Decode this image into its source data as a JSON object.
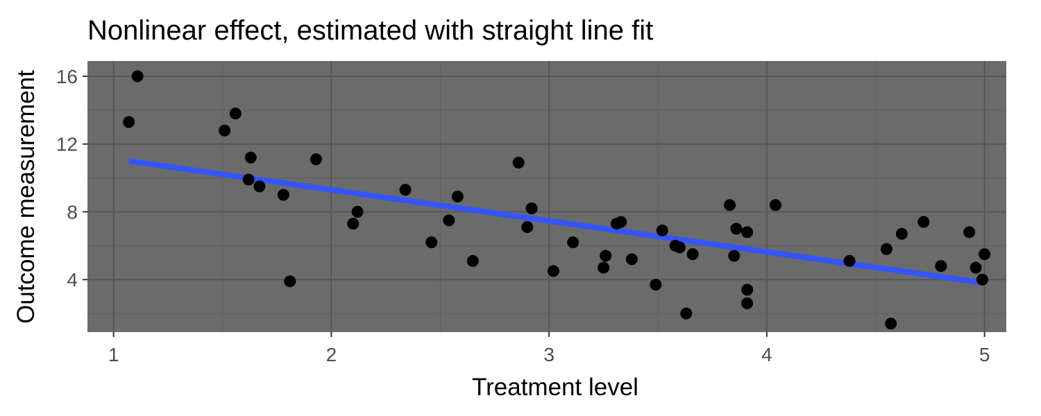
{
  "chart_data": {
    "type": "scatter",
    "title": "Nonlinear effect, estimated with straight line fit",
    "xlabel": "Treatment level",
    "ylabel": "Outcome measurement",
    "xlim": [
      0.88,
      5.1
    ],
    "ylim": [
      0.9,
      16.9
    ],
    "x_ticks": [
      "1",
      "2",
      "3",
      "4",
      "5"
    ],
    "y_ticks": [
      "4",
      "8",
      "12",
      "16"
    ],
    "grid": true,
    "panel_background": "#6b6b6b",
    "point_color": "#000000",
    "fit_line_color": "#3355ff",
    "points": [
      {
        "x": 1.07,
        "y": 13.3
      },
      {
        "x": 1.11,
        "y": 16.0
      },
      {
        "x": 1.51,
        "y": 12.8
      },
      {
        "x": 1.56,
        "y": 13.8
      },
      {
        "x": 1.62,
        "y": 9.9
      },
      {
        "x": 1.63,
        "y": 11.2
      },
      {
        "x": 1.67,
        "y": 9.5
      },
      {
        "x": 1.78,
        "y": 9.0
      },
      {
        "x": 1.81,
        "y": 3.9
      },
      {
        "x": 1.93,
        "y": 11.1
      },
      {
        "x": 2.1,
        "y": 7.3
      },
      {
        "x": 2.12,
        "y": 8.0
      },
      {
        "x": 2.34,
        "y": 9.3
      },
      {
        "x": 2.46,
        "y": 6.2
      },
      {
        "x": 2.54,
        "y": 7.5
      },
      {
        "x": 2.58,
        "y": 8.9
      },
      {
        "x": 2.65,
        "y": 5.1
      },
      {
        "x": 2.86,
        "y": 10.9
      },
      {
        "x": 2.9,
        "y": 7.1
      },
      {
        "x": 2.92,
        "y": 8.2
      },
      {
        "x": 3.02,
        "y": 4.5
      },
      {
        "x": 3.11,
        "y": 6.2
      },
      {
        "x": 3.25,
        "y": 4.7
      },
      {
        "x": 3.26,
        "y": 5.4
      },
      {
        "x": 3.31,
        "y": 7.3
      },
      {
        "x": 3.33,
        "y": 7.4
      },
      {
        "x": 3.38,
        "y": 5.2
      },
      {
        "x": 3.49,
        "y": 3.7
      },
      {
        "x": 3.52,
        "y": 6.9
      },
      {
        "x": 3.58,
        "y": 6.0
      },
      {
        "x": 3.6,
        "y": 5.9
      },
      {
        "x": 3.63,
        "y": 2.0
      },
      {
        "x": 3.66,
        "y": 5.5
      },
      {
        "x": 3.83,
        "y": 8.4
      },
      {
        "x": 3.85,
        "y": 5.4
      },
      {
        "x": 3.86,
        "y": 7.0
      },
      {
        "x": 3.91,
        "y": 6.8
      },
      {
        "x": 3.91,
        "y": 3.4
      },
      {
        "x": 3.91,
        "y": 2.6
      },
      {
        "x": 4.04,
        "y": 8.4
      },
      {
        "x": 4.38,
        "y": 5.1
      },
      {
        "x": 4.55,
        "y": 5.8
      },
      {
        "x": 4.57,
        "y": 1.4
      },
      {
        "x": 4.62,
        "y": 6.7
      },
      {
        "x": 4.72,
        "y": 7.4
      },
      {
        "x": 4.8,
        "y": 4.8
      },
      {
        "x": 4.93,
        "y": 6.8
      },
      {
        "x": 4.96,
        "y": 4.7
      },
      {
        "x": 4.99,
        "y": 4.0
      },
      {
        "x": 5.0,
        "y": 5.5
      }
    ],
    "fit_line": {
      "x": [
        1.07,
        5.0
      ],
      "y": [
        11.0,
        3.8
      ]
    }
  }
}
